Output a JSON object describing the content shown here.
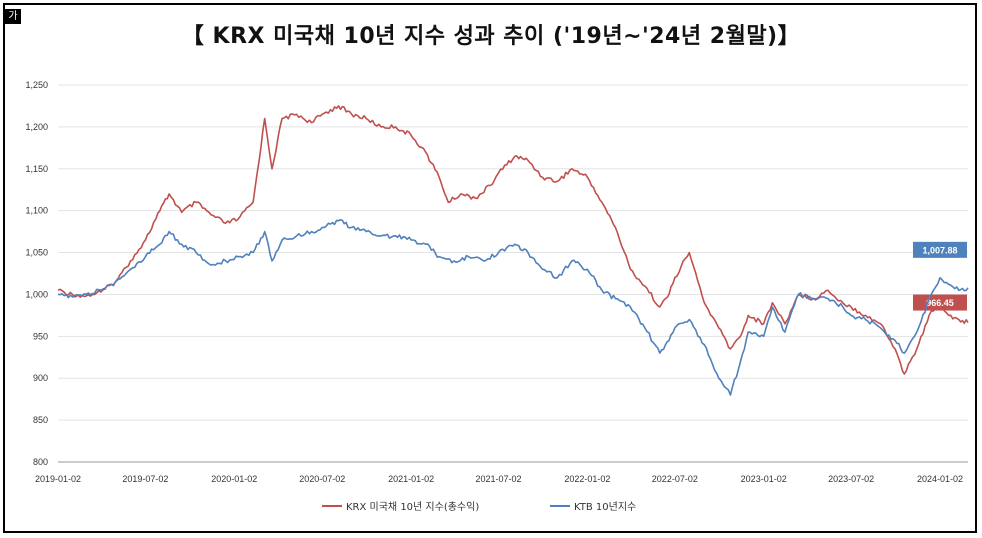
{
  "corner_tag": "가",
  "title": "【 KRX 미국채 10년 지수 성과 추이 ('19년~'24년 2월말)】",
  "chart_data": {
    "type": "line",
    "title": "【 KRX 미국채 10년 지수 성과 추이 ('19년~'24년 2월말)】",
    "xlabel": "",
    "ylabel": "",
    "ylim": [
      800,
      1250
    ],
    "yticks": [
      "1,250",
      "1,200",
      "1,150",
      "1,100",
      "1,050",
      "1,000",
      "950",
      "900",
      "850",
      "800"
    ],
    "ytick_values": [
      1250,
      1200,
      1150,
      1100,
      1050,
      1000,
      950,
      900,
      850,
      800
    ],
    "xticks": [
      "2019-01-02",
      "2019-07-02",
      "2020-01-02",
      "2020-07-02",
      "2021-01-02",
      "2021-07-02",
      "2022-01-02",
      "2022-07-02",
      "2023-01-02",
      "2023-07-02",
      "2024-01-02"
    ],
    "xlim": [
      "2019-01-02",
      "2024-02-29"
    ],
    "grid": "horizontal",
    "legend_position": "bottom",
    "series": [
      {
        "name": "KRX 미국채 10년 지수(총수익)",
        "color": "#c0504d",
        "end_label": "966.45",
        "points": [
          [
            "2019-01-02",
            1005
          ],
          [
            "2019-02-01",
            1000
          ],
          [
            "2019-03-01",
            998
          ],
          [
            "2019-04-01",
            1003
          ],
          [
            "2019-05-01",
            1015
          ],
          [
            "2019-06-01",
            1040
          ],
          [
            "2019-07-02",
            1065
          ],
          [
            "2019-08-01",
            1100
          ],
          [
            "2019-08-20",
            1120
          ],
          [
            "2019-09-15",
            1098
          ],
          [
            "2019-10-15",
            1110
          ],
          [
            "2019-11-15",
            1095
          ],
          [
            "2019-12-15",
            1085
          ],
          [
            "2020-01-10",
            1090
          ],
          [
            "2020-02-10",
            1110
          ],
          [
            "2020-03-05",
            1210
          ],
          [
            "2020-03-20",
            1150
          ],
          [
            "2020-04-10",
            1210
          ],
          [
            "2020-05-10",
            1215
          ],
          [
            "2020-06-10",
            1205
          ],
          [
            "2020-07-02",
            1215
          ],
          [
            "2020-08-05",
            1225
          ],
          [
            "2020-09-01",
            1215
          ],
          [
            "2020-10-01",
            1210
          ],
          [
            "2020-11-01",
            1200
          ],
          [
            "2020-12-01",
            1200
          ],
          [
            "2021-01-02",
            1190
          ],
          [
            "2021-02-01",
            1170
          ],
          [
            "2021-03-01",
            1140
          ],
          [
            "2021-03-20",
            1110
          ],
          [
            "2021-04-15",
            1120
          ],
          [
            "2021-05-15",
            1115
          ],
          [
            "2021-06-15",
            1130
          ],
          [
            "2021-07-02",
            1145
          ],
          [
            "2021-08-05",
            1165
          ],
          [
            "2021-09-01",
            1160
          ],
          [
            "2021-10-01",
            1140
          ],
          [
            "2021-11-01",
            1135
          ],
          [
            "2021-12-01",
            1150
          ],
          [
            "2022-01-02",
            1140
          ],
          [
            "2022-02-01",
            1110
          ],
          [
            "2022-03-01",
            1080
          ],
          [
            "2022-04-01",
            1030
          ],
          [
            "2022-05-01",
            1010
          ],
          [
            "2022-06-01",
            985
          ],
          [
            "2022-06-20",
            1000
          ],
          [
            "2022-07-02",
            1020
          ],
          [
            "2022-08-01",
            1050
          ],
          [
            "2022-09-01",
            990
          ],
          [
            "2022-10-01",
            960
          ],
          [
            "2022-10-25",
            935
          ],
          [
            "2022-11-15",
            950
          ],
          [
            "2022-12-01",
            975
          ],
          [
            "2023-01-02",
            965
          ],
          [
            "2023-01-20",
            990
          ],
          [
            "2023-02-15",
            965
          ],
          [
            "2023-03-15",
            1000
          ],
          [
            "2023-04-15",
            995
          ],
          [
            "2023-05-15",
            1005
          ],
          [
            "2023-06-15",
            990
          ],
          [
            "2023-07-02",
            985
          ],
          [
            "2023-08-01",
            975
          ],
          [
            "2023-09-01",
            965
          ],
          [
            "2023-10-01",
            935
          ],
          [
            "2023-10-20",
            905
          ],
          [
            "2023-11-15",
            935
          ],
          [
            "2023-12-15",
            980
          ],
          [
            "2024-01-02",
            990
          ],
          [
            "2024-01-20",
            975
          ],
          [
            "2024-02-10",
            970
          ],
          [
            "2024-02-29",
            966.45
          ]
        ]
      },
      {
        "name": "KTB 10년지수",
        "color": "#4f81bd",
        "end_label": "1,007.88",
        "points": [
          [
            "2019-01-02",
            1000
          ],
          [
            "2019-02-01",
            997
          ],
          [
            "2019-03-01",
            1000
          ],
          [
            "2019-04-01",
            1005
          ],
          [
            "2019-05-01",
            1015
          ],
          [
            "2019-06-01",
            1030
          ],
          [
            "2019-07-02",
            1045
          ],
          [
            "2019-08-01",
            1060
          ],
          [
            "2019-08-20",
            1075
          ],
          [
            "2019-09-15",
            1060
          ],
          [
            "2019-10-15",
            1050
          ],
          [
            "2019-11-15",
            1035
          ],
          [
            "2019-12-15",
            1040
          ],
          [
            "2020-01-10",
            1045
          ],
          [
            "2020-02-10",
            1050
          ],
          [
            "2020-03-05",
            1075
          ],
          [
            "2020-03-20",
            1040
          ],
          [
            "2020-04-10",
            1065
          ],
          [
            "2020-05-10",
            1070
          ],
          [
            "2020-06-10",
            1075
          ],
          [
            "2020-07-02",
            1080
          ],
          [
            "2020-08-05",
            1088
          ],
          [
            "2020-09-01",
            1080
          ],
          [
            "2020-10-01",
            1075
          ],
          [
            "2020-11-01",
            1070
          ],
          [
            "2020-12-01",
            1070
          ],
          [
            "2021-01-02",
            1065
          ],
          [
            "2021-02-01",
            1060
          ],
          [
            "2021-03-01",
            1045
          ],
          [
            "2021-04-01",
            1040
          ],
          [
            "2021-05-01",
            1045
          ],
          [
            "2021-06-01",
            1040
          ],
          [
            "2021-07-02",
            1050
          ],
          [
            "2021-08-05",
            1060
          ],
          [
            "2021-09-01",
            1050
          ],
          [
            "2021-10-01",
            1030
          ],
          [
            "2021-11-01",
            1020
          ],
          [
            "2021-12-01",
            1040
          ],
          [
            "2022-01-02",
            1030
          ],
          [
            "2022-02-01",
            1005
          ],
          [
            "2022-03-01",
            995
          ],
          [
            "2022-04-01",
            985
          ],
          [
            "2022-05-01",
            960
          ],
          [
            "2022-06-01",
            930
          ],
          [
            "2022-06-20",
            945
          ],
          [
            "2022-07-02",
            960
          ],
          [
            "2022-08-01",
            970
          ],
          [
            "2022-09-01",
            940
          ],
          [
            "2022-10-01",
            900
          ],
          [
            "2022-10-25",
            880
          ],
          [
            "2022-11-15",
            920
          ],
          [
            "2022-12-01",
            955
          ],
          [
            "2023-01-02",
            950
          ],
          [
            "2023-01-20",
            985
          ],
          [
            "2023-02-15",
            955
          ],
          [
            "2023-03-15",
            1000
          ],
          [
            "2023-04-15",
            995
          ],
          [
            "2023-05-15",
            995
          ],
          [
            "2023-06-15",
            985
          ],
          [
            "2023-07-02",
            975
          ],
          [
            "2023-08-01",
            970
          ],
          [
            "2023-09-01",
            960
          ],
          [
            "2023-10-01",
            945
          ],
          [
            "2023-10-20",
            930
          ],
          [
            "2023-11-15",
            955
          ],
          [
            "2023-12-15",
            1000
          ],
          [
            "2024-01-02",
            1020
          ],
          [
            "2024-01-20",
            1012
          ],
          [
            "2024-02-10",
            1005
          ],
          [
            "2024-02-29",
            1007.88
          ]
        ]
      }
    ]
  }
}
